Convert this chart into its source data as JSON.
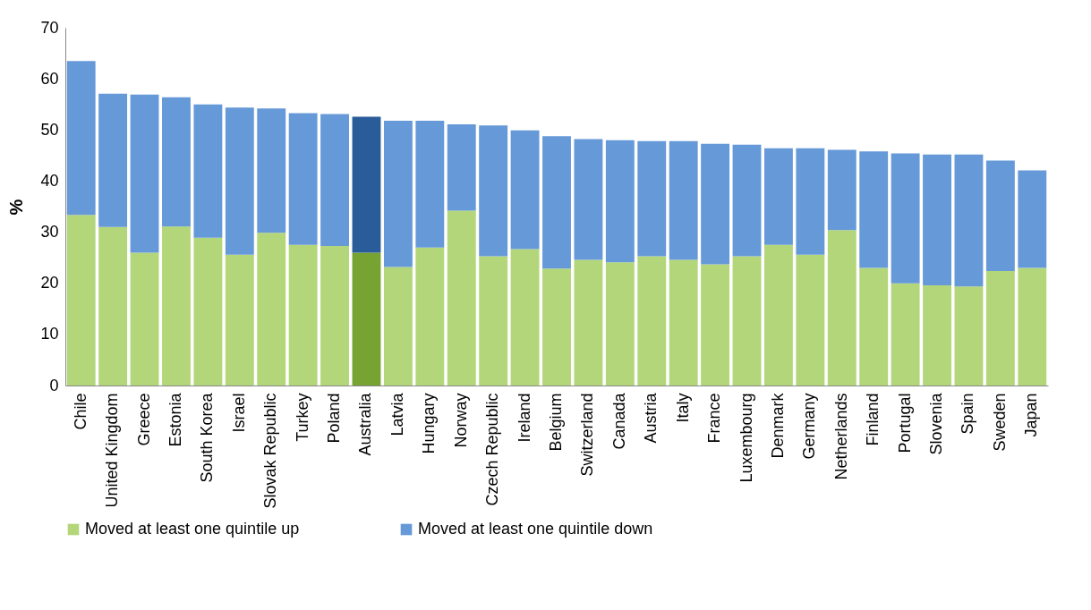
{
  "chart_data": {
    "type": "bar",
    "stacked": true,
    "ylabel": "%",
    "ylim": [
      0,
      70
    ],
    "yticks": [
      0,
      10,
      20,
      30,
      40,
      50,
      60,
      70
    ],
    "grid": false,
    "legend": "bottom",
    "categories": [
      "Chile",
      "United Kingdom",
      "Greece",
      "Estonia",
      "South Korea",
      "Israel",
      "Slovak Republic",
      "Turkey",
      "Poland",
      "Australia",
      "Latvia",
      "Hungary",
      "Norway",
      "Czech Republic",
      "Ireland",
      "Belgium",
      "Switzerland",
      "Canada",
      "Austria",
      "Italy",
      "France",
      "Luxembourg",
      "Denmark",
      "Germany",
      "Netherlands",
      "Finland",
      "Portugal",
      "Slovenia",
      "Spain",
      "Sweden",
      "Japan"
    ],
    "series": [
      {
        "name": "Moved at least one quintile up",
        "color": "#b3d67a",
        "colors": [
          "#b3d67a",
          "#b3d67a",
          "#b3d67a",
          "#b3d67a",
          "#b3d67a",
          "#b3d67a",
          "#b3d67a",
          "#b3d67a",
          "#b3d67a",
          "#76a332",
          "#b3d67a",
          "#b3d67a",
          "#b3d67a",
          "#b3d67a",
          "#b3d67a",
          "#b3d67a",
          "#b3d67a",
          "#b3d67a",
          "#b3d67a",
          "#b3d67a",
          "#b3d67a",
          "#b3d67a",
          "#b3d67a",
          "#b3d67a",
          "#b3d67a",
          "#b3d67a",
          "#b3d67a",
          "#b3d67a",
          "#b3d67a",
          "#b3d67a",
          "#b3d67a"
        ],
        "values": [
          33.4,
          31.0,
          26.0,
          31.1,
          28.9,
          25.6,
          29.9,
          27.5,
          27.3,
          26.0,
          23.2,
          27.0,
          34.2,
          25.3,
          26.7,
          22.9,
          24.6,
          24.1,
          25.3,
          24.6,
          23.7,
          25.3,
          27.5,
          25.6,
          30.4,
          23.0,
          20.0,
          19.6,
          19.4,
          22.4,
          23.0
        ]
      },
      {
        "name": "Moved at least one quintile down",
        "color": "#6699d8",
        "colors": [
          "#6699d8",
          "#6699d8",
          "#6699d8",
          "#6699d8",
          "#6699d8",
          "#6699d8",
          "#6699d8",
          "#6699d8",
          "#6699d8",
          "#2a5c9a",
          "#6699d8",
          "#6699d8",
          "#6699d8",
          "#6699d8",
          "#6699d8",
          "#6699d8",
          "#6699d8",
          "#6699d8",
          "#6699d8",
          "#6699d8",
          "#6699d8",
          "#6699d8",
          "#6699d8",
          "#6699d8",
          "#6699d8",
          "#6699d8",
          "#6699d8",
          "#6699d8",
          "#6699d8",
          "#6699d8",
          "#6699d8"
        ],
        "values": [
          30.1,
          26.1,
          30.9,
          25.3,
          26.1,
          28.8,
          24.3,
          25.8,
          25.8,
          26.6,
          28.6,
          24.8,
          16.9,
          25.6,
          23.2,
          25.9,
          23.6,
          23.9,
          22.5,
          23.2,
          23.6,
          21.8,
          18.9,
          20.8,
          15.7,
          22.8,
          25.4,
          25.6,
          25.8,
          21.6,
          19.1
        ]
      }
    ]
  }
}
